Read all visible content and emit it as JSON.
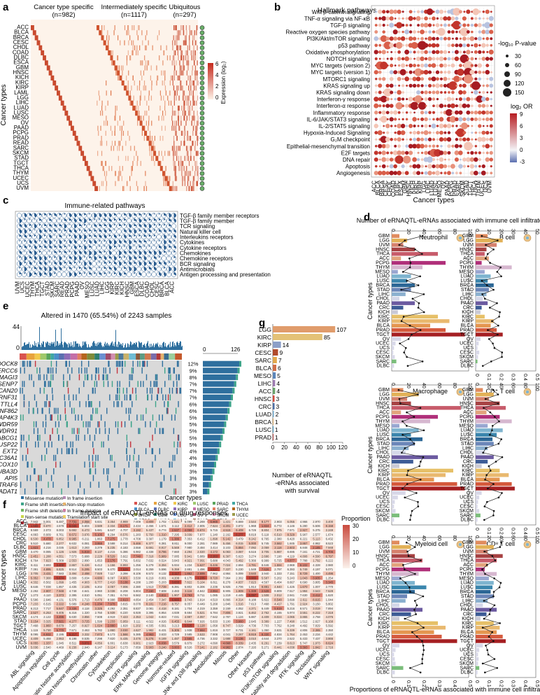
{
  "panels": {
    "a": "a",
    "b": "b",
    "c": "c",
    "d": "d",
    "e": "e",
    "f": "f",
    "g": "g"
  },
  "cancer_types_a": [
    "ACC",
    "BLCA",
    "BRCA",
    "CESC",
    "CHOL",
    "COAD",
    "DLBC",
    "ESCA",
    "GBM",
    "HNSC",
    "KICH",
    "KIRC",
    "KIRP",
    "LAML",
    "LGG",
    "LIHC",
    "LUAD",
    "LUSC",
    "MESO",
    "OV",
    "PAAD",
    "PCPG",
    "PRAD",
    "READ",
    "SARC",
    "SKCM",
    "STAD",
    "TGCT",
    "THCA",
    "THYM",
    "UCEC",
    "UCS",
    "UVM"
  ],
  "panel_a": {
    "groups": [
      {
        "label": "Cancer type specific",
        "n": "(n=982)",
        "color": "#3e6ea5"
      },
      {
        "label": "Intermediately specific",
        "n": "(n=1117)",
        "color": "#d9a48c"
      },
      {
        "label": "Ubiquitous",
        "n": "(n=297)",
        "color": "#6db36b"
      }
    ],
    "ylabel": "Cancer types",
    "legend_title": "Expression (log₂)",
    "legend_ticks": [
      "6",
      "4",
      "2",
      "0"
    ]
  },
  "panel_b": {
    "title": "Hallmark pathways",
    "pathways": [
      "Wnt β-catenin signaling",
      "TNF-α signaling via NF-κB",
      "TGF-β signaling",
      "Reactive oxygen species pathway",
      "PI3K/Akt/mTOR signaling",
      "p53 pathway",
      "Oxidative phosphorylation",
      "NOTCH signaling",
      "MYC targets (version 2)",
      "MYC targets (version 1)",
      "MTORC1 signaling",
      "KRAS signaling up",
      "KRAS signaling down",
      "Interferon-γ response",
      "Interferon-α response",
      "Inflammatory response",
      "IL-6/JAK/STAT3 signaling",
      "IL-2/STAT5 signaling",
      "Hypoxia-Induced Signaling",
      "G₂M checkpoint",
      "Epithelial-mesenchymal transition",
      "E2F targets",
      "DNA repair",
      "Apoptosis",
      "Angiogenesis"
    ],
    "cancers": [
      "ACC",
      "BLCA",
      "BRCA",
      "CESC",
      "CHOL",
      "COAD",
      "DLBC",
      "ESCA",
      "GBM",
      "HNSC",
      "KICH",
      "KIRC",
      "KIRP",
      "LGG",
      "LIHC",
      "LUAD",
      "LUSC",
      "MESO",
      "OV",
      "PAAD",
      "PCPG",
      "PRAD",
      "SARC",
      "SKCM",
      "STAD",
      "TGCT",
      "THCA",
      "THYM",
      "UCEC",
      "UCS",
      "UVM"
    ],
    "xlabel": "Cancer types",
    "size_title": "-log₁₀ P-value",
    "size_ticks": [
      "30",
      "60",
      "90",
      "120",
      "150"
    ],
    "color_title": "log₂ OR",
    "color_ticks": [
      "9",
      "6",
      "3",
      "0",
      "-3"
    ]
  },
  "panel_c": {
    "title": "Immune-related pathways",
    "pathways": [
      "TGF-β family member receptors",
      "TGF-β family member",
      "TCR signaling",
      "Natural killer cell",
      "Interleukins receptors",
      "Cytokines",
      "Cytokine receptors",
      "Chemokines",
      "Chemokine receptors",
      "BCR signaling",
      "Antimicrobials",
      "Antigen processing and presentation"
    ],
    "cancers": [
      "UVM",
      "UCS",
      "UCEC",
      "THYM",
      "THCA",
      "TGCT",
      "STAD",
      "SKCM",
      "SARC",
      "READ",
      "PRAD",
      "PCPG",
      "PAAD",
      "OV",
      "MESO",
      "LUSC",
      "LUAD",
      "LIHC",
      "LGG",
      "KIRP",
      "KIRC",
      "KICH",
      "HNSC",
      "GBM",
      "ESCA",
      "DLBC",
      "COAD",
      "CHOL",
      "CESC",
      "BRCA",
      "BLCA",
      "ACC"
    ]
  },
  "panel_d": {
    "title": "Number of eRNAQTL-eRNAs associated with immune cell infiltrates",
    "xlabel": "Proportions of eRNAQTL-eRNAs associated with immune cell infiltrates",
    "ylabel": "Cancer types",
    "top_ticks": [
      "0",
      "20",
      "40",
      "60",
      "80",
      "100"
    ],
    "top_ticks_small": [
      "0",
      "10",
      "20",
      "30",
      "40",
      "50"
    ],
    "bottom_ticks": [
      "0",
      "0.1",
      "0.2",
      "0.3",
      "0.4",
      "0.5"
    ],
    "cancers": [
      "GBM",
      "LGG",
      "UVM",
      "HNSC",
      "THCA",
      "ACC",
      "PCPG",
      "THYM",
      "MESO",
      "LUAD",
      "LUSC",
      "BRCA",
      "STAD",
      "LIHC",
      "CHOL",
      "PAAD",
      "CRC",
      "KICH",
      "KIRC",
      "KIRP",
      "BLCA",
      "PRAD",
      "TGCT",
      "OV",
      "UCEC",
      "UCS",
      "CESC",
      "SKCM",
      "SARC",
      "DLBC"
    ],
    "cells": [
      {
        "name": "Neutrophil",
        "counts": [
          10,
          20,
          15,
          30,
          60,
          12,
          70,
          40,
          8,
          25,
          20,
          30,
          25,
          18,
          10,
          30,
          15,
          8,
          60,
          75,
          50,
          70,
          95,
          12,
          5,
          3,
          2,
          4,
          6,
          3
        ]
      },
      {
        "name": "B cell",
        "counts": [
          20,
          45,
          35,
          18,
          15,
          22,
          10,
          60,
          15,
          25,
          20,
          30,
          22,
          18,
          12,
          20,
          10,
          8,
          15,
          30,
          25,
          35,
          45,
          8,
          5,
          3,
          6,
          4,
          3,
          2
        ]
      },
      {
        "name": "Macrophage",
        "counts": [
          15,
          35,
          20,
          25,
          90,
          12,
          60,
          50,
          10,
          35,
          25,
          40,
          30,
          22,
          18,
          60,
          28,
          10,
          80,
          70,
          55,
          85,
          95,
          18,
          8,
          4,
          3,
          5,
          10,
          3
        ]
      },
      {
        "name": "CD⁺ T cell",
        "counts": [
          12,
          30,
          22,
          40,
          50,
          18,
          40,
          60,
          20,
          45,
          35,
          28,
          30,
          20,
          15,
          30,
          20,
          10,
          40,
          55,
          40,
          60,
          65,
          10,
          6,
          4,
          3,
          6,
          8,
          3
        ]
      },
      {
        "name": "Myeloid cell",
        "counts": [
          10,
          25,
          20,
          30,
          40,
          15,
          50,
          35,
          12,
          30,
          45,
          30,
          20,
          18,
          10,
          40,
          25,
          10,
          60,
          70,
          55,
          65,
          85,
          10,
          5,
          3,
          4,
          5,
          15,
          4
        ]
      },
      {
        "name": "CD⁸ T cell",
        "counts": [
          18,
          30,
          20,
          45,
          35,
          20,
          15,
          35,
          22,
          30,
          28,
          25,
          30,
          20,
          12,
          35,
          18,
          8,
          30,
          40,
          35,
          45,
          50,
          12,
          6,
          4,
          5,
          4,
          6,
          3
        ]
      }
    ]
  },
  "panel_e": {
    "title": "Altered in 1470 (65.54%) of 2243 samples",
    "ymax": "44",
    "ymin": "0",
    "bar_ticks": [
      "0",
      "126"
    ],
    "genes": [
      "DOCK8",
      "ERCC6",
      "MAGI3",
      "SENP7",
      "ZSCAN20",
      "RNF31",
      "TTLL4",
      "ZNF862",
      "MAP4K3",
      "WDR59",
      "WDR91",
      "ABCG1",
      "DUSP22",
      "EXT2",
      "SLC36A1",
      "COX10",
      "TUBA3D",
      "API5",
      "TRAF6",
      "ADAT1"
    ],
    "pcts": [
      "12%",
      "9%",
      "8%",
      "7%",
      "7%",
      "7%",
      "6%",
      "6%",
      "5%",
      "5%",
      "5%",
      "5%",
      "5%",
      "4%",
      "4%",
      "3%",
      "3%",
      "3%",
      "3%",
      "3%"
    ],
    "mutation_legend": [
      {
        "label": "Missense mutation",
        "color": "#2e6f9e"
      },
      {
        "label": "In frame insertion",
        "color": "#b58bb6"
      },
      {
        "label": "Frame shift insertion",
        "color": "#3ea48a"
      },
      {
        "label": "Non-stop mutation",
        "color": "#e7b36a"
      },
      {
        "label": "Frame shift deletion",
        "color": "#6fb45f"
      },
      {
        "label": "In frame deletion",
        "color": "#d27ca3"
      },
      {
        "label": "Non-sense mutation",
        "color": "#cbd74a"
      },
      {
        "label": "Translation start site",
        "color": "#f0d063"
      },
      {
        "label": "Splice site",
        "color": "#c4343f"
      },
      {
        "label": "Multiple hits",
        "color": "#2b2b2b"
      }
    ],
    "cancer_title": "Cancer types",
    "cancer_legend": [
      "ACC",
      "CRC",
      "KIRC",
      "LUSC",
      "PRAD",
      "THCA",
      "BLCA",
      "DLBC",
      "KIRP",
      "MESO",
      "SARC",
      "THYM",
      "BRCA",
      "GBM",
      "LGG",
      "OV",
      "SKCM",
      "UCEC",
      "CESC",
      "HNSC",
      "LIHC",
      "PAAD",
      "STAD",
      "UCS",
      "CHOL",
      "KICH",
      "LUAD",
      "PCPG",
      "TGCT",
      "UVM"
    ]
  },
  "panel_f": {
    "title": "Impact of eRNAQTL-eRNAs on drug responses",
    "ylabel": "Cancer types",
    "legend_title": "Proportion",
    "legend_ticks": [
      "30",
      "20",
      "10",
      "0"
    ],
    "rows": [
      "ACC",
      "BLCA",
      "BRCA",
      "CESC",
      "CHOL",
      "CRC",
      "DLBC",
      "GBM",
      "HNSC",
      "KICH",
      "KIRC",
      "KIRP",
      "LGG",
      "LIHC",
      "LUAD",
      "LUSC",
      "MESO",
      "OV",
      "PAAD",
      "PCPG",
      "PRAD",
      "SARC",
      "SKCM",
      "STAD",
      "TGCT",
      "THCA",
      "THYM",
      "UCEC",
      "UCS",
      "UVM"
    ],
    "cols": [
      "ABL signaling",
      "Apoptosis regulation",
      "Cell cycle",
      "Chromatin histone acetylation",
      "Chromatin histone methylation",
      "Chromatin other",
      "Cytoskeleton",
      "DNA replication",
      "EGFR signaling",
      "ERK MAPK signaling",
      "Genome integrity",
      "Hormone-related",
      "IGF1R signaling",
      "JNK and p38 signaling",
      "Metabolism",
      "Mitosis",
      "Other",
      "Other kinases",
      "p53 pathway",
      "PI3K/mTOR signaling",
      "Protein stability and degradation",
      "RTK signaling",
      "Unclassified",
      "WNT signaling"
    ]
  },
  "panel_g": {
    "xlabel": "Number of eRNAQTL\n-eRNAs associated\nwith survival",
    "xticks": [
      "0",
      "20",
      "40",
      "60",
      "80",
      "100",
      "120"
    ],
    "bars": [
      {
        "cancer": "LGG",
        "value": 107,
        "color": "#e09c6c"
      },
      {
        "cancer": "KIRC",
        "value": 85,
        "color": "#e4c277"
      },
      {
        "cancer": "KIRP",
        "value": 14,
        "color": "#8c9fc8"
      },
      {
        "cancer": "CESC",
        "value": 9,
        "color": "#b04a2c"
      },
      {
        "cancer": "SARC",
        "value": 7,
        "color": "#e3a94e"
      },
      {
        "cancer": "BLCA",
        "value": 6,
        "color": "#d17049"
      },
      {
        "cancer": "MESO",
        "value": 5,
        "color": "#5b86ba"
      },
      {
        "cancer": "LIHC",
        "value": 4,
        "color": "#9d7bb1"
      },
      {
        "cancer": "ACC",
        "value": 4,
        "color": "#6aa36c"
      },
      {
        "cancer": "HNSC",
        "value": 3,
        "color": "#d34a3c"
      },
      {
        "cancer": "CRC",
        "value": 3,
        "color": "#4b6ea4"
      },
      {
        "cancer": "LUAD",
        "value": 2,
        "color": "#7ab0d1"
      },
      {
        "cancer": "BRCA",
        "value": 1,
        "color": "#cfa05a"
      },
      {
        "cancer": "LUSC",
        "value": 1,
        "color": "#3b8bb0"
      },
      {
        "cancer": "PRAD",
        "value": 1,
        "color": "#a83a3a"
      }
    ]
  }
}
